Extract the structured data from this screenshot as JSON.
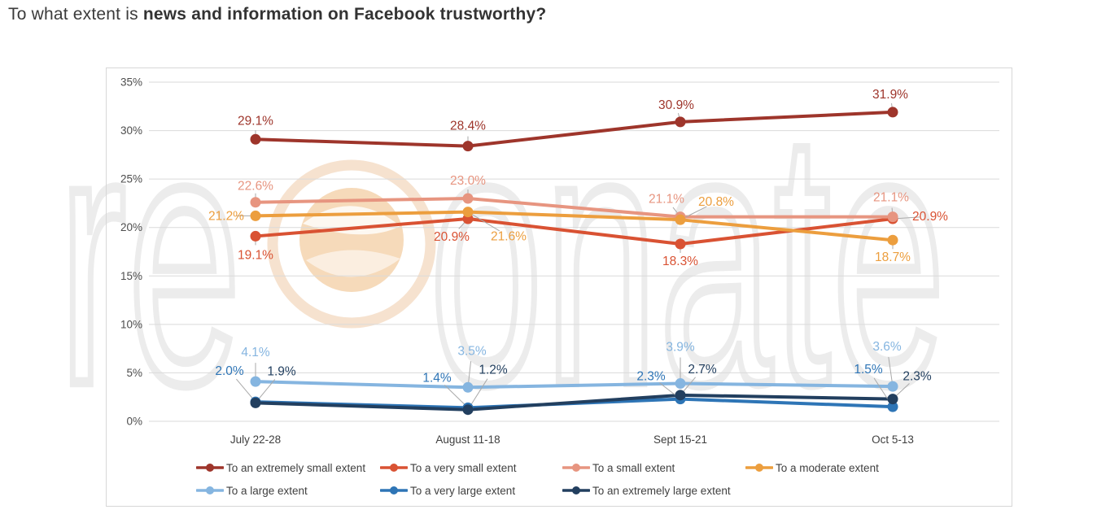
{
  "title": {
    "prefix": "To what extent is ",
    "emphasis": "news and information on Facebook trustworthy?"
  },
  "watermark": {
    "brand": "resonate",
    "left_letters": "re",
    "right_letters": "onate"
  },
  "chart_data": {
    "type": "line",
    "title": "To what extent is news and information on Facebook trustworthy?",
    "categories": [
      "July 22-28",
      "August 11-18",
      "Sept 15-21",
      "Oct 5-13"
    ],
    "yticks": [
      "0%",
      "5%",
      "10%",
      "15%",
      "20%",
      "25%",
      "30%",
      "35%"
    ],
    "ylim": [
      0,
      35
    ],
    "ytick_step": 5,
    "grid": true,
    "legend_position": "bottom",
    "value_suffix": "%",
    "series": [
      {
        "name": "To an extremely small extent",
        "color": "#9E352B",
        "values": [
          29.1,
          28.4,
          30.9,
          31.9
        ]
      },
      {
        "name": "To a very small extent",
        "color": "#D95233",
        "values": [
          19.1,
          20.9,
          18.3,
          20.9
        ]
      },
      {
        "name": "To a small extent",
        "color": "#E79580",
        "values": [
          22.6,
          23.0,
          21.1,
          21.1
        ]
      },
      {
        "name": "To a moderate extent",
        "color": "#EC9E3E",
        "values": [
          21.2,
          21.6,
          20.8,
          18.7
        ]
      },
      {
        "name": "To a large extent",
        "color": "#85B5E0",
        "values": [
          4.1,
          3.5,
          3.9,
          3.6
        ]
      },
      {
        "name": "To a very large extent",
        "color": "#2E75B6",
        "values": [
          2.0,
          1.4,
          2.3,
          1.5
        ]
      },
      {
        "name": "To an extremely large extent",
        "color": "#223F5F",
        "values": [
          1.9,
          1.2,
          2.7,
          2.3
        ]
      }
    ]
  },
  "colors": {
    "grid": "#DADADA",
    "border": "#D7D7D7",
    "tick_text": "#4D4D4D",
    "axis_text": "#3F3F3F",
    "leader": "#A9A9A9",
    "watermark_gray": "#ECECEC",
    "watermark_orange_ring": "#F6E2CF",
    "watermark_orange_fill": "#F4D3AE"
  }
}
